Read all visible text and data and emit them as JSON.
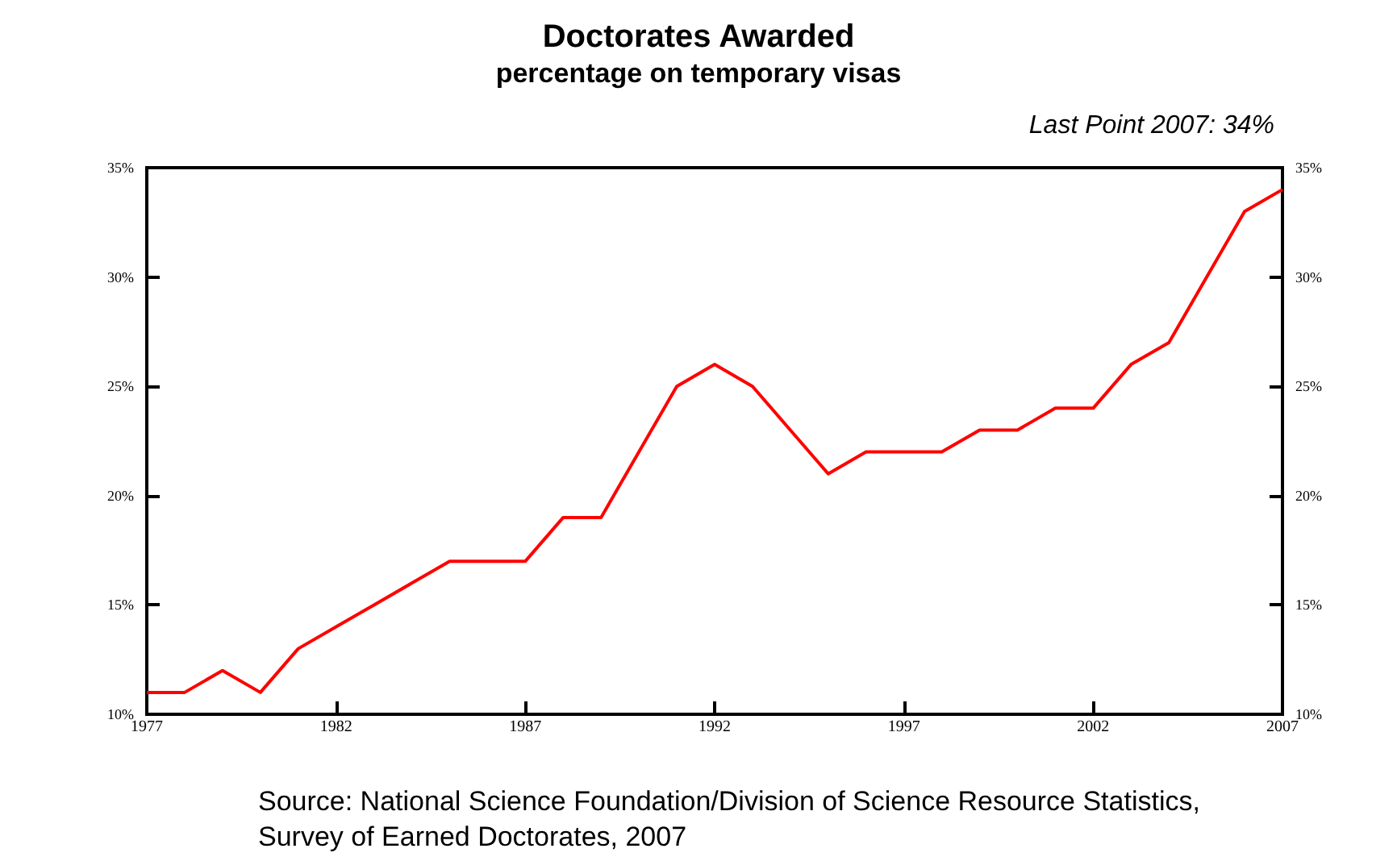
{
  "chart_data": {
    "type": "line",
    "title": "Doctorates Awarded",
    "subtitle": "percentage on temporary visas",
    "annotations": [
      "Last Point 2007: 34%",
      "Source: National Science Foundation/Division of Science Resource Statistics, Survey of Earned Doctorates, 2007"
    ],
    "x": [
      1977,
      1978,
      1979,
      1980,
      1981,
      1982,
      1983,
      1984,
      1985,
      1986,
      1987,
      1988,
      1989,
      1990,
      1991,
      1992,
      1993,
      1994,
      1995,
      1996,
      1997,
      1998,
      1999,
      2000,
      2001,
      2002,
      2003,
      2004,
      2005,
      2006,
      2007
    ],
    "series": [
      {
        "color": "#ff0000",
        "values": [
          11,
          11,
          12,
          11,
          13,
          14,
          15,
          16,
          17,
          17,
          17,
          19,
          19,
          22,
          25,
          26,
          25,
          23,
          21,
          22,
          22,
          22,
          23,
          23,
          24,
          24,
          26,
          27,
          30,
          33,
          34
        ]
      }
    ],
    "xlim": [
      1977,
      2007
    ],
    "xticks": [
      1977,
      1982,
      1987,
      1992,
      1997,
      2002,
      2007
    ],
    "ylim": [
      10,
      35
    ],
    "yticks": [
      {
        "value": 10,
        "label": "10%"
      },
      {
        "value": 15,
        "label": "15%"
      },
      {
        "value": 20,
        "label": "20%"
      },
      {
        "value": 25,
        "label": "25%"
      },
      {
        "value": 30,
        "label": "30%"
      },
      {
        "value": 35,
        "label": "35%"
      }
    ],
    "y2lim": [
      10,
      35
    ],
    "y2ticks": [
      {
        "value": 10,
        "label": "10%"
      },
      {
        "value": 15,
        "label": "15%"
      },
      {
        "value": 20,
        "label": "20%"
      },
      {
        "value": 25,
        "label": "25%"
      },
      {
        "value": 30,
        "label": "30%"
      },
      {
        "value": 35,
        "label": "35%"
      }
    ],
    "grid": false,
    "marker": "none",
    "line_style": "solid"
  }
}
